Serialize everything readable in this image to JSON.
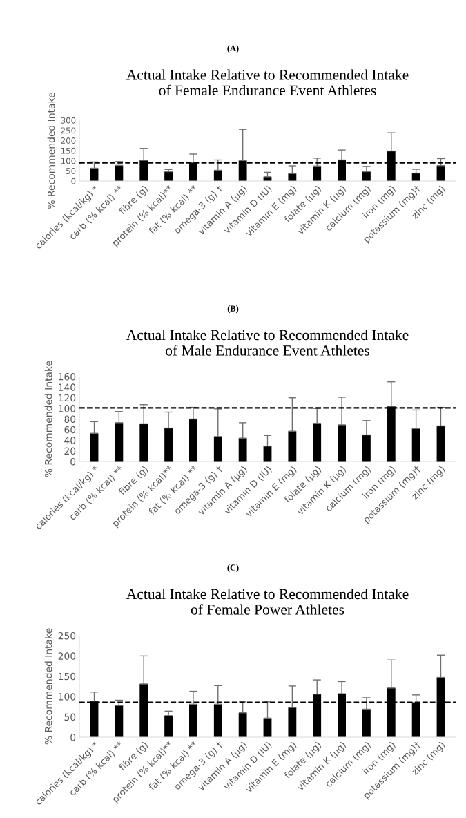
{
  "chart_data": [
    {
      "type": "bar",
      "title": "Actual Intake Relative to Recommended Intake\nof Female Endurance Event Athletes",
      "ylabel": "% Recommended Intake",
      "annotations": [
        "(A)"
      ],
      "categories": [
        "calories (kcal/kg) *",
        "carb (% kcal) **",
        "fibre (g)",
        "protein (% kcal)**",
        "fat (% kcal) **",
        "omega-3 (g) †",
        "vitamin A (µg)",
        "vitamin D (IU)",
        "vitamin E (mg)",
        "folate (µg)",
        "vitamin K (µg)",
        "calcium (mg)",
        "iron (mg)",
        "potassium (mg)†",
        "zinc (mg)"
      ],
      "values": [
        63,
        77,
        102,
        46,
        91,
        53,
        101,
        21,
        37,
        74,
        104,
        46,
        148,
        39,
        76
      ],
      "errors": [
        [
          63,
          94
        ],
        [
          77,
          96
        ],
        [
          102,
          161
        ],
        [
          46,
          57
        ],
        [
          91,
          133
        ],
        [
          53,
          104
        ],
        [
          101,
          255
        ],
        [
          21,
          43
        ],
        [
          37,
          75
        ],
        [
          74,
          113
        ],
        [
          104,
          153
        ],
        [
          46,
          72
        ],
        [
          148,
          238
        ],
        [
          39,
          58
        ],
        [
          76,
          111
        ]
      ],
      "color": "#000000",
      "ylim": [
        0,
        300
      ],
      "yticks": [
        0,
        50,
        100,
        150,
        200,
        250,
        300
      ],
      "grid": false,
      "ref_lines": [
        {
          "axis": "y",
          "value": 90,
          "color": "#000000",
          "line_style": "dashed"
        }
      ]
    },
    {
      "type": "bar",
      "title": "Actual Intake Relative to Recommended Intake\nof Male Endurance Event Athletes",
      "ylabel": "% Recommended Intake",
      "annotations": [
        "(B)"
      ],
      "categories": [
        "calories (kcal/kg) *",
        "carb (% kcal) **",
        "fibre (g)",
        "protein (% kcal)**",
        "fat (% kcal) **",
        "omega-3 (g) †",
        "vitamin A (µg)",
        "vitamin D (IU)",
        "vitamin E (mg)",
        "folate (µg)",
        "vitamin K (µg)",
        "calcium (mg)",
        "iron (mg)",
        "potassium (mg)†",
        "zinc (mg)"
      ],
      "values": [
        53,
        73,
        71,
        63,
        80,
        47,
        44,
        29,
        57,
        72,
        69,
        50,
        104,
        62,
        67
      ],
      "errors": [
        [
          53,
          75
        ],
        [
          73,
          94
        ],
        [
          71,
          107
        ],
        [
          63,
          93
        ],
        [
          80,
          102
        ],
        [
          47,
          99
        ],
        [
          44,
          73
        ],
        [
          29,
          49
        ],
        [
          57,
          120
        ],
        [
          72,
          100
        ],
        [
          69,
          121
        ],
        [
          50,
          77
        ],
        [
          104,
          150
        ],
        [
          62,
          97
        ],
        [
          67,
          102
        ]
      ],
      "color": "#000000",
      "ylim": [
        0,
        160
      ],
      "yticks": [
        0,
        20,
        40,
        60,
        80,
        100,
        120,
        140,
        160
      ],
      "grid": false,
      "ref_lines": [
        {
          "axis": "y",
          "value": 101,
          "color": "#000000",
          "line_style": "dashed"
        }
      ]
    },
    {
      "type": "bar",
      "title": "Actual Intake Relative to Recommended Intake\nof Female Power Athletes",
      "ylabel": "% Recommended Intake",
      "annotations": [
        "(C)"
      ],
      "categories": [
        "calories (kcal/kg) *",
        "carb (% kcal) **",
        "fibre (g)",
        "protein (% kcal)**",
        "fat (% kcal) **",
        "omega-3 (g) †",
        "vitamin A (µg)",
        "vitamin D (IU)",
        "vitamin E (mg)",
        "folate (µg)",
        "vitamin K (µg)",
        "calcium (mg)",
        "iron (mg)",
        "potassium (mg)†",
        "zinc (mg)"
      ],
      "values": [
        89,
        78,
        131,
        53,
        81,
        81,
        60,
        47,
        73,
        106,
        107,
        69,
        121,
        85,
        147
      ],
      "errors": [
        [
          89,
          111
        ],
        [
          78,
          91
        ],
        [
          131,
          200
        ],
        [
          53,
          64
        ],
        [
          81,
          113
        ],
        [
          81,
          127
        ],
        [
          60,
          87
        ],
        [
          47,
          87
        ],
        [
          73,
          126
        ],
        [
          106,
          141
        ],
        [
          107,
          137
        ],
        [
          69,
          97
        ],
        [
          121,
          190
        ],
        [
          85,
          104
        ],
        [
          147,
          202
        ]
      ],
      "color": "#000000",
      "ylim": [
        0,
        250
      ],
      "yticks": [
        0,
        50,
        100,
        150,
        200,
        250
      ],
      "grid": false,
      "ref_lines": [
        {
          "axis": "y",
          "value": 86,
          "color": "#000000",
          "line_style": "dashed"
        }
      ]
    }
  ]
}
